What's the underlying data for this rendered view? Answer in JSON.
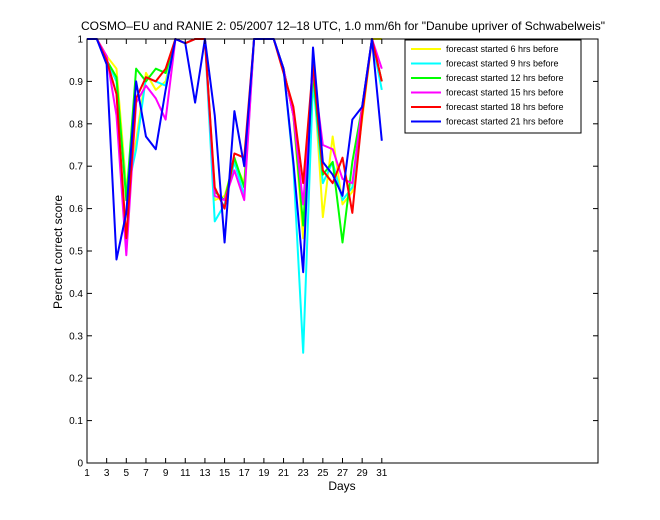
{
  "chart_data": {
    "type": "line",
    "title": "COSMO–EU and RANIE 2: 05/2007 12–18 UTC, 1.0 mm/6h for \"Danube upriver of Schwabelweis\"",
    "xlabel": "Days",
    "ylabel": "Percent correct score",
    "xlim": [
      1,
      53
    ],
    "ylim": [
      0,
      1
    ],
    "xticks": [
      1,
      3,
      5,
      7,
      9,
      11,
      13,
      15,
      17,
      19,
      21,
      23,
      25,
      27,
      29,
      31
    ],
    "yticks": [
      0,
      0.1,
      0.2,
      0.3,
      0.4,
      0.5,
      0.6,
      0.7,
      0.8,
      0.9,
      1
    ],
    "ytick_labels": [
      "0",
      "0.1",
      "0.2",
      "0.3",
      "0.4",
      "0.5",
      "0.6",
      "0.7",
      "0.8",
      "0.9",
      "1"
    ],
    "legend_position": "top-right",
    "grid": false,
    "x": [
      1,
      2,
      3,
      4,
      5,
      6,
      7,
      8,
      9,
      10,
      11,
      12,
      13,
      14,
      15,
      16,
      17,
      18,
      19,
      20,
      21,
      22,
      23,
      24,
      25,
      26,
      27,
      28,
      29,
      30,
      31
    ],
    "series": [
      {
        "name": "forecast started 6 hrs before",
        "color": "#ffff00",
        "values": [
          1.0,
          1.0,
          0.96,
          0.93,
          0.65,
          0.76,
          0.92,
          0.88,
          0.9,
          1.0,
          0.99,
          1.0,
          1.0,
          0.62,
          0.63,
          0.71,
          0.66,
          1.0,
          1.0,
          1.0,
          0.93,
          0.82,
          0.53,
          0.94,
          0.58,
          0.77,
          0.61,
          0.64,
          0.81,
          1.0,
          1.0
        ]
      },
      {
        "name": "forecast started 9 hrs before",
        "color": "#00ffff",
        "values": [
          1.0,
          1.0,
          0.95,
          0.9,
          0.63,
          0.74,
          0.91,
          0.9,
          0.89,
          1.0,
          0.99,
          1.0,
          1.0,
          0.57,
          0.61,
          0.71,
          0.63,
          1.0,
          1.0,
          1.0,
          0.93,
          0.7,
          0.26,
          0.9,
          0.66,
          0.71,
          0.62,
          0.65,
          0.83,
          1.0,
          0.88
        ]
      },
      {
        "name": "forecast started 12 hrs before",
        "color": "#00ff00",
        "values": [
          1.0,
          1.0,
          0.95,
          0.91,
          0.62,
          0.93,
          0.9,
          0.93,
          0.92,
          1.0,
          0.99,
          1.0,
          1.0,
          0.64,
          0.62,
          0.72,
          0.65,
          1.0,
          1.0,
          1.0,
          0.93,
          0.82,
          0.56,
          0.92,
          0.68,
          0.71,
          0.52,
          0.71,
          0.84,
          1.0,
          0.9
        ]
      },
      {
        "name": "forecast started 15 hrs before",
        "color": "#ff00ff",
        "values": [
          1.0,
          1.0,
          0.96,
          0.82,
          0.49,
          0.85,
          0.89,
          0.86,
          0.81,
          1.0,
          0.99,
          1.0,
          1.0,
          0.63,
          0.62,
          0.69,
          0.62,
          1.0,
          1.0,
          1.0,
          0.93,
          0.82,
          0.61,
          0.93,
          0.75,
          0.74,
          0.67,
          0.66,
          0.84,
          1.0,
          0.93
        ]
      },
      {
        "name": "forecast started 18 hrs before",
        "color": "#ff0000",
        "values": [
          1.0,
          1.0,
          0.95,
          0.87,
          0.53,
          0.86,
          0.91,
          0.9,
          0.93,
          1.0,
          0.99,
          1.0,
          1.0,
          0.65,
          0.6,
          0.73,
          0.72,
          1.0,
          1.0,
          1.0,
          0.92,
          0.84,
          0.66,
          0.94,
          0.69,
          0.66,
          0.72,
          0.59,
          0.82,
          1.0,
          0.9
        ]
      },
      {
        "name": "forecast started 21 hrs before",
        "color": "#0000ff",
        "values": [
          1.0,
          1.0,
          0.94,
          0.48,
          0.59,
          0.9,
          0.77,
          0.74,
          0.88,
          1.0,
          0.99,
          0.85,
          1.0,
          0.82,
          0.52,
          0.83,
          0.7,
          1.0,
          1.0,
          1.0,
          0.93,
          0.71,
          0.45,
          0.98,
          0.71,
          0.68,
          0.63,
          0.81,
          0.84,
          1.0,
          0.76
        ]
      }
    ]
  }
}
